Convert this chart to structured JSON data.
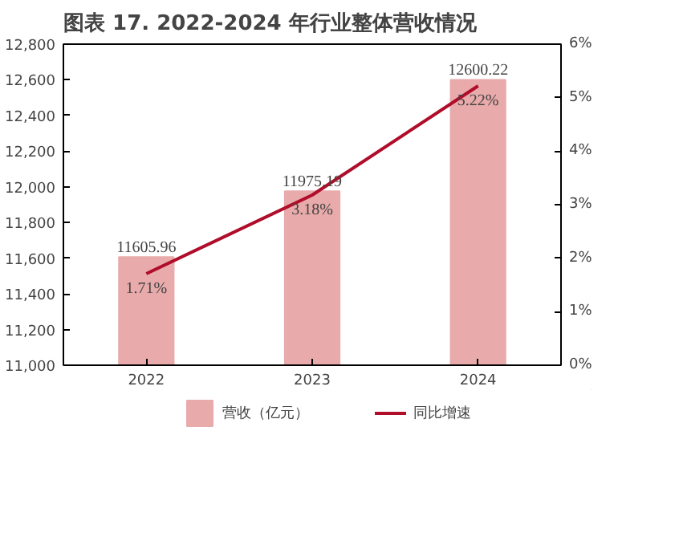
{
  "chart_data": {
    "type": "bar",
    "title": "图表 17. 2022-2024 年行业整体营收情况",
    "categories": [
      "2022",
      "2023",
      "2024"
    ],
    "series": [
      {
        "name": "营收（亿元）",
        "color": "#e8aaaa",
        "values": [
          11605.96,
          11975.19,
          12600.22
        ],
        "value_labels": [
          "11605.96",
          "11975.19",
          "12600.22"
        ]
      },
      {
        "name": "同比增速",
        "type": "line",
        "axis": "y2",
        "color": "#b00d2a",
        "values": [
          1.71,
          3.18,
          5.22
        ],
        "value_labels": [
          "1.71%",
          "3.18%",
          "5.22%"
        ]
      }
    ],
    "ylim": [
      11000,
      12800
    ],
    "yticks": [
      {
        "value": 11000,
        "label": "11,000"
      },
      {
        "value": 11200,
        "label": "11,200"
      },
      {
        "value": 11400,
        "label": "11,400"
      },
      {
        "value": 11600,
        "label": "11,600"
      },
      {
        "value": 11800,
        "label": "11,800"
      },
      {
        "value": 12000,
        "label": "12,000"
      },
      {
        "value": 12200,
        "label": "12,200"
      },
      {
        "value": 12400,
        "label": "12,400"
      },
      {
        "value": 12600,
        "label": "12,600"
      },
      {
        "value": 12800,
        "label": "12,800"
      }
    ],
    "y2lim": [
      0,
      6
    ],
    "y2ticks": [
      {
        "value": 0,
        "label": "0%"
      },
      {
        "value": 1,
        "label": "1%"
      },
      {
        "value": 2,
        "label": "2%"
      },
      {
        "value": 3,
        "label": "3%"
      },
      {
        "value": 4,
        "label": "4%"
      },
      {
        "value": 5,
        "label": "5%"
      },
      {
        "value": 6,
        "label": "6%"
      }
    ],
    "legend": "bottom",
    "grid": false,
    "marker": "none",
    "line_style": "solid"
  }
}
